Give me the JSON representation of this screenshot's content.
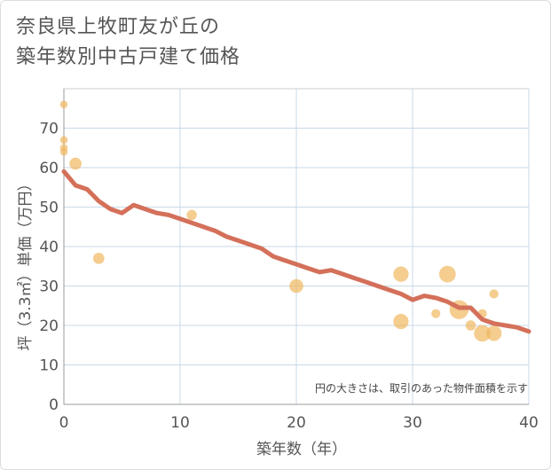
{
  "title_line1": "奈良県上牧町友が丘の",
  "title_line2": "築年数別中古戸建て価格",
  "chart_data": {
    "type": "scatter",
    "xlabel": "築年数（年）",
    "ylabel": "坪（3.3㎡）単価（万円）",
    "xlim": [
      0,
      40
    ],
    "ylim": [
      0,
      80
    ],
    "x_ticks": [
      0,
      10,
      20,
      30,
      40
    ],
    "y_ticks": [
      0,
      10,
      20,
      30,
      40,
      50,
      60,
      70
    ],
    "grid": true,
    "note": "円の大きさは、取引のあった物件面積を示す",
    "colors": {
      "bubble": "#f0b860",
      "line": "#d4705a"
    },
    "points": [
      {
        "x": 0,
        "y": 76,
        "size": 1
      },
      {
        "x": 0,
        "y": 67,
        "size": 1
      },
      {
        "x": 0,
        "y": 65,
        "size": 1
      },
      {
        "x": 0,
        "y": 64,
        "size": 1
      },
      {
        "x": 1,
        "y": 61,
        "size": 3
      },
      {
        "x": 3,
        "y": 37,
        "size": 2.5
      },
      {
        "x": 11,
        "y": 48,
        "size": 2
      },
      {
        "x": 20,
        "y": 30,
        "size": 4
      },
      {
        "x": 29,
        "y": 33,
        "size": 5
      },
      {
        "x": 29,
        "y": 21,
        "size": 5
      },
      {
        "x": 32,
        "y": 23,
        "size": 1.5
      },
      {
        "x": 33,
        "y": 33,
        "size": 6
      },
      {
        "x": 34,
        "y": 24,
        "size": 8
      },
      {
        "x": 35,
        "y": 20,
        "size": 2
      },
      {
        "x": 36,
        "y": 23,
        "size": 1.5
      },
      {
        "x": 36,
        "y": 18,
        "size": 6
      },
      {
        "x": 37,
        "y": 18,
        "size": 5
      },
      {
        "x": 37,
        "y": 28,
        "size": 1.5
      }
    ],
    "trend": {
      "x": [
        0,
        1,
        2,
        3,
        4,
        5,
        6,
        7,
        8,
        9,
        10,
        11,
        12,
        13,
        14,
        15,
        16,
        17,
        18,
        19,
        20,
        21,
        22,
        23,
        24,
        25,
        26,
        27,
        28,
        29,
        30,
        31,
        32,
        33,
        34,
        35,
        36,
        37,
        38,
        39,
        40
      ],
      "y": [
        59,
        55.5,
        54.5,
        51.5,
        49.5,
        48.5,
        50.5,
        49.5,
        48.5,
        48,
        47,
        46,
        45,
        44,
        42.5,
        41.5,
        40.5,
        39.5,
        37.5,
        36.5,
        35.5,
        34.5,
        33.5,
        34,
        33,
        32,
        31,
        30,
        29,
        28,
        26.5,
        27.5,
        27,
        26,
        24.5,
        24.5,
        21.5,
        20.5,
        20,
        19.5,
        18.5
      ]
    }
  }
}
